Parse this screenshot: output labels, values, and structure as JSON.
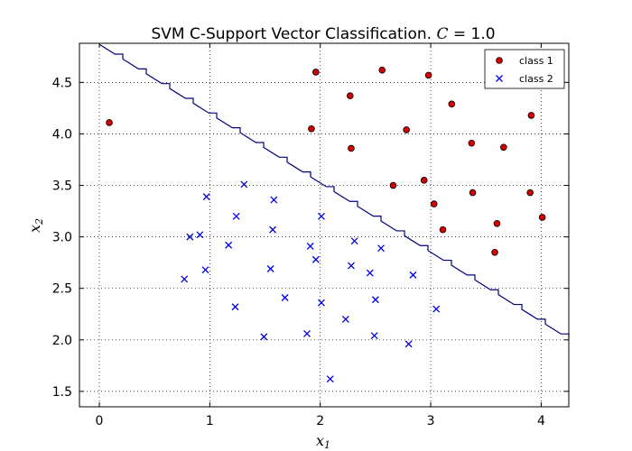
{
  "chart_data": {
    "type": "scatter",
    "title": "SVM C-Support Vector Classification. C = 1.0",
    "xlabel": "x1",
    "ylabel": "x2",
    "xlim": [
      -0.18,
      4.25
    ],
    "ylim": [
      1.35,
      4.88
    ],
    "xticks": [
      "0",
      "1",
      "2",
      "3",
      "4"
    ],
    "yticks": [
      "1.5",
      "2.0",
      "2.5",
      "3.0",
      "3.5",
      "4.0",
      "4.5"
    ],
    "grid": true,
    "legend_position": "top-right",
    "colors": {
      "class1_fill": "#d40000",
      "class2_marker": "#0000e0",
      "boundary": "#000080"
    },
    "series": [
      {
        "name": "class 1",
        "marker": "circle",
        "points": [
          [
            0.09,
            4.11
          ],
          [
            1.96,
            4.6
          ],
          [
            2.56,
            4.62
          ],
          [
            2.98,
            4.57
          ],
          [
            2.27,
            4.37
          ],
          [
            3.19,
            4.29
          ],
          [
            1.92,
            4.05
          ],
          [
            2.78,
            4.04
          ],
          [
            3.91,
            4.18
          ],
          [
            2.28,
            3.86
          ],
          [
            3.37,
            3.91
          ],
          [
            3.66,
            3.87
          ],
          [
            2.66,
            3.5
          ],
          [
            2.94,
            3.55
          ],
          [
            3.03,
            3.32
          ],
          [
            3.38,
            3.43
          ],
          [
            3.9,
            3.43
          ],
          [
            3.6,
            3.13
          ],
          [
            4.01,
            3.19
          ],
          [
            3.11,
            3.07
          ],
          [
            3.58,
            2.85
          ]
        ]
      },
      {
        "name": "class 2",
        "marker": "x",
        "points": [
          [
            0.97,
            3.39
          ],
          [
            1.31,
            3.51
          ],
          [
            1.58,
            3.36
          ],
          [
            1.24,
            3.2
          ],
          [
            2.01,
            3.2
          ],
          [
            0.82,
            3.0
          ],
          [
            0.91,
            3.02
          ],
          [
            1.17,
            2.92
          ],
          [
            1.57,
            3.07
          ],
          [
            1.91,
            2.91
          ],
          [
            2.31,
            2.96
          ],
          [
            0.96,
            2.68
          ],
          [
            1.55,
            2.69
          ],
          [
            1.96,
            2.78
          ],
          [
            2.28,
            2.72
          ],
          [
            2.45,
            2.65
          ],
          [
            2.55,
            2.89
          ],
          [
            2.84,
            2.63
          ],
          [
            0.77,
            2.59
          ],
          [
            1.23,
            2.32
          ],
          [
            1.68,
            2.41
          ],
          [
            2.01,
            2.36
          ],
          [
            2.5,
            2.39
          ],
          [
            3.05,
            2.3
          ],
          [
            2.23,
            2.2
          ],
          [
            1.49,
            2.03
          ],
          [
            1.88,
            2.06
          ],
          [
            2.49,
            2.04
          ],
          [
            2.8,
            1.96
          ],
          [
            2.09,
            1.62
          ]
        ]
      }
    ],
    "decision_boundary": {
      "style": "stepped line",
      "points": [
        [
          0.0,
          4.87
        ],
        [
          4.25,
          2.01
        ]
      ]
    }
  }
}
